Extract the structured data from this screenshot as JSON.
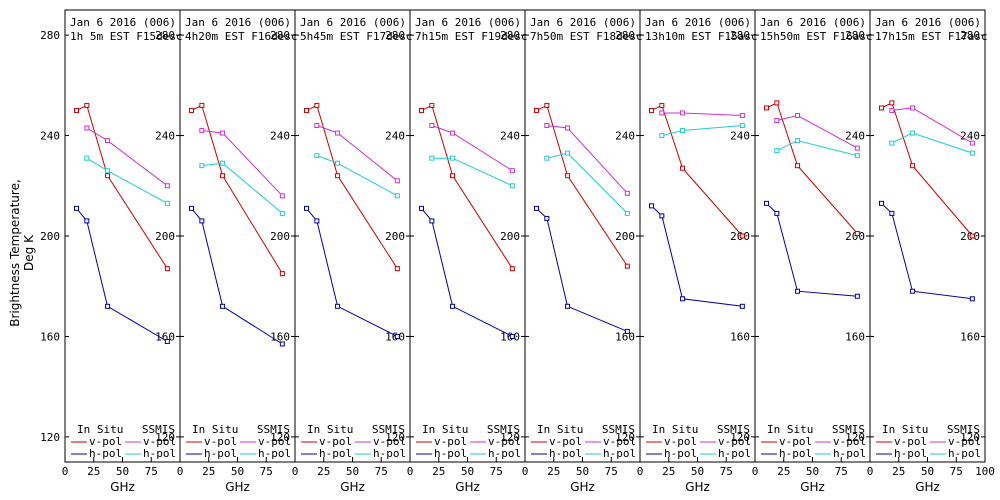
{
  "figure": {
    "ylabel": "Brightness Temperature, Deg K",
    "xlabel": "GHz",
    "legend": {
      "in_situ_title": "In Situ",
      "ssmis_title": "SSMIS",
      "vpol_label": "v-pol",
      "hpol_label": "h-pol"
    }
  },
  "colors": {
    "insitu_v": "#cc0000",
    "insitu_h": "#0000aa",
    "ssmis_v": "#cc33cc",
    "ssmis_h": "#22cccc"
  },
  "chart_data": [
    {
      "type": "line",
      "title": "Jan 6 2016 (006)",
      "subtitle": "1h 5m EST F15desc",
      "xlabel": "GHz",
      "ylabel": "Brightness Temperature, Deg K",
      "xlim": [
        0,
        100
      ],
      "ylim": [
        110,
        290
      ],
      "xticks": [
        0,
        25,
        50,
        75,
        100
      ],
      "yticks": [
        120,
        160,
        200,
        240,
        280
      ],
      "legend": "bottom",
      "series": [
        {
          "name": "In Situ v-pol",
          "x": [
            10,
            19,
            37,
            89
          ],
          "y": [
            250,
            252,
            224,
            187
          ]
        },
        {
          "name": "In Situ h-pol",
          "x": [
            10,
            19,
            37,
            89
          ],
          "y": [
            211,
            206,
            172,
            158
          ]
        },
        {
          "name": "SSMIS v-pol",
          "x": [
            19,
            37,
            89
          ],
          "y": [
            243,
            238,
            220
          ]
        },
        {
          "name": "SSMIS h-pol",
          "x": [
            19,
            37,
            89
          ],
          "y": [
            231,
            226,
            213
          ]
        }
      ]
    },
    {
      "type": "line",
      "title": "Jan 6 2016 (006)",
      "subtitle": "4h20m EST F16desc",
      "xlabel": "GHz",
      "ylabel": "Brightness Temperature, Deg K",
      "xlim": [
        0,
        100
      ],
      "ylim": [
        110,
        290
      ],
      "xticks": [
        0,
        25,
        50,
        75,
        100
      ],
      "yticks": [
        120,
        160,
        200,
        240,
        280
      ],
      "legend": "bottom",
      "series": [
        {
          "name": "In Situ v-pol",
          "x": [
            10,
            19,
            37,
            89
          ],
          "y": [
            250,
            252,
            224,
            185
          ]
        },
        {
          "name": "In Situ h-pol",
          "x": [
            10,
            19,
            37,
            89
          ],
          "y": [
            211,
            206,
            172,
            157
          ]
        },
        {
          "name": "SSMIS v-pol",
          "x": [
            19,
            37,
            89
          ],
          "y": [
            242,
            241,
            216
          ]
        },
        {
          "name": "SSMIS h-pol",
          "x": [
            19,
            37,
            89
          ],
          "y": [
            228,
            229,
            209
          ]
        }
      ]
    },
    {
      "type": "line",
      "title": "Jan 6 2016 (006)",
      "subtitle": "5h45m EST F17desc",
      "xlabel": "GHz",
      "ylabel": "Brightness Temperature, Deg K",
      "xlim": [
        0,
        100
      ],
      "ylim": [
        110,
        290
      ],
      "xticks": [
        0,
        25,
        50,
        75,
        100
      ],
      "yticks": [
        120,
        160,
        200,
        240,
        280
      ],
      "legend": "bottom",
      "series": [
        {
          "name": "In Situ v-pol",
          "x": [
            10,
            19,
            37,
            89
          ],
          "y": [
            250,
            252,
            224,
            187
          ]
        },
        {
          "name": "In Situ h-pol",
          "x": [
            10,
            19,
            37,
            89
          ],
          "y": [
            211,
            206,
            172,
            160
          ]
        },
        {
          "name": "SSMIS v-pol",
          "x": [
            19,
            37,
            89
          ],
          "y": [
            244,
            241,
            222
          ]
        },
        {
          "name": "SSMIS h-pol",
          "x": [
            19,
            37,
            89
          ],
          "y": [
            232,
            229,
            216
          ]
        }
      ]
    },
    {
      "type": "line",
      "title": "Jan 6 2016 (006)",
      "subtitle": "7h15m EST F19desc",
      "xlabel": "GHz",
      "ylabel": "Brightness Temperature, Deg K",
      "xlim": [
        0,
        100
      ],
      "ylim": [
        110,
        290
      ],
      "xticks": [
        0,
        25,
        50,
        75,
        100
      ],
      "yticks": [
        120,
        160,
        200,
        240,
        280
      ],
      "legend": "bottom",
      "series": [
        {
          "name": "In Situ v-pol",
          "x": [
            10,
            19,
            37,
            89
          ],
          "y": [
            250,
            252,
            224,
            187
          ]
        },
        {
          "name": "In Situ h-pol",
          "x": [
            10,
            19,
            37,
            89
          ],
          "y": [
            211,
            206,
            172,
            160
          ]
        },
        {
          "name": "SSMIS v-pol",
          "x": [
            19,
            37,
            89
          ],
          "y": [
            244,
            241,
            226
          ]
        },
        {
          "name": "SSMIS h-pol",
          "x": [
            19,
            37,
            89
          ],
          "y": [
            231,
            231,
            220
          ]
        }
      ]
    },
    {
      "type": "line",
      "title": "Jan 6 2016 (006)",
      "subtitle": "7h50m EST F18desc",
      "xlabel": "GHz",
      "ylabel": "Brightness Temperature, Deg K",
      "xlim": [
        0,
        100
      ],
      "ylim": [
        110,
        290
      ],
      "xticks": [
        0,
        25,
        50,
        75,
        100
      ],
      "yticks": [
        120,
        160,
        200,
        240,
        280
      ],
      "legend": "bottom",
      "series": [
        {
          "name": "In Situ v-pol",
          "x": [
            10,
            19,
            37,
            89
          ],
          "y": [
            250,
            252,
            224,
            188
          ]
        },
        {
          "name": "In Situ h-pol",
          "x": [
            10,
            19,
            37,
            89
          ],
          "y": [
            211,
            207,
            172,
            162
          ]
        },
        {
          "name": "SSMIS v-pol",
          "x": [
            19,
            37,
            89
          ],
          "y": [
            244,
            243,
            217
          ]
        },
        {
          "name": "SSMIS h-pol",
          "x": [
            19,
            37,
            89
          ],
          "y": [
            231,
            233,
            209
          ]
        }
      ]
    },
    {
      "type": "line",
      "title": "Jan 6 2016 (006)",
      "subtitle": "13h10m EST F15asc",
      "xlabel": "GHz",
      "ylabel": "Brightness Temperature, Deg K",
      "xlim": [
        0,
        100
      ],
      "ylim": [
        110,
        290
      ],
      "xticks": [
        0,
        25,
        50,
        75,
        100
      ],
      "yticks": [
        120,
        160,
        200,
        240,
        280
      ],
      "legend": "bottom",
      "series": [
        {
          "name": "In Situ v-pol",
          "x": [
            10,
            19,
            37,
            89
          ],
          "y": [
            250,
            252,
            227,
            200
          ]
        },
        {
          "name": "In Situ h-pol",
          "x": [
            10,
            19,
            37,
            89
          ],
          "y": [
            212,
            208,
            175,
            172
          ]
        },
        {
          "name": "SSMIS v-pol",
          "x": [
            19,
            37,
            89
          ],
          "y": [
            249,
            249,
            248
          ]
        },
        {
          "name": "SSMIS h-pol",
          "x": [
            19,
            37,
            89
          ],
          "y": [
            240,
            242,
            244
          ]
        }
      ]
    },
    {
      "type": "line",
      "title": "Jan 6 2016 (006)",
      "subtitle": "15h50m EST F16asc",
      "xlabel": "GHz",
      "ylabel": "Brightness Temperature, Deg K",
      "xlim": [
        0,
        100
      ],
      "ylim": [
        110,
        290
      ],
      "xticks": [
        0,
        25,
        50,
        75,
        100
      ],
      "yticks": [
        120,
        160,
        200,
        240,
        280
      ],
      "legend": "bottom",
      "series": [
        {
          "name": "In Situ v-pol",
          "x": [
            10,
            19,
            37,
            89
          ],
          "y": [
            251,
            253,
            228,
            201
          ]
        },
        {
          "name": "In Situ h-pol",
          "x": [
            10,
            19,
            37,
            89
          ],
          "y": [
            213,
            209,
            178,
            176
          ]
        },
        {
          "name": "SSMIS v-pol",
          "x": [
            19,
            37,
            89
          ],
          "y": [
            246,
            248,
            235
          ]
        },
        {
          "name": "SSMIS h-pol",
          "x": [
            19,
            37,
            89
          ],
          "y": [
            234,
            238,
            232
          ]
        }
      ]
    },
    {
      "type": "line",
      "title": "Jan 6 2016 (006)",
      "subtitle": "17h15m EST F17asc",
      "xlabel": "GHz",
      "ylabel": "Brightness Temperature, Deg K",
      "xlim": [
        0,
        100
      ],
      "ylim": [
        110,
        290
      ],
      "xticks": [
        0,
        25,
        50,
        75,
        100
      ],
      "yticks": [
        120,
        160,
        200,
        240,
        280
      ],
      "legend": "bottom",
      "series": [
        {
          "name": "In Situ v-pol",
          "x": [
            10,
            19,
            37,
            89
          ],
          "y": [
            251,
            253,
            228,
            200
          ]
        },
        {
          "name": "In Situ h-pol",
          "x": [
            10,
            19,
            37,
            89
          ],
          "y": [
            213,
            209,
            178,
            175
          ]
        },
        {
          "name": "SSMIS v-pol",
          "x": [
            19,
            37,
            89
          ],
          "y": [
            250,
            251,
            237
          ]
        },
        {
          "name": "SSMIS h-pol",
          "x": [
            19,
            37,
            89
          ],
          "y": [
            237,
            241,
            233
          ]
        }
      ]
    }
  ]
}
